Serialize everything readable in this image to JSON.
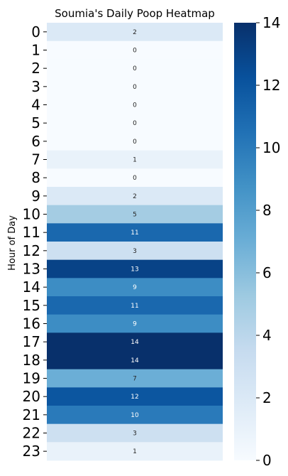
{
  "chart_data": {
    "type": "heatmap",
    "title": "Soumia's Daily Poop Heatmap",
    "ylabel": "Hour of Day",
    "xlabel": "",
    "categories": [
      "0",
      "1",
      "2",
      "3",
      "4",
      "5",
      "6",
      "7",
      "8",
      "9",
      "10",
      "11",
      "12",
      "13",
      "14",
      "15",
      "16",
      "17",
      "18",
      "19",
      "20",
      "21",
      "22",
      "23"
    ],
    "values": [
      2,
      0,
      0,
      0,
      0,
      0,
      0,
      1,
      0,
      2,
      5,
      11,
      3,
      13,
      9,
      11,
      9,
      14,
      14,
      7,
      12,
      10,
      3,
      1
    ],
    "colormap": "Blues",
    "vmin": 0,
    "vmax": 14,
    "colorbar_ticks": [
      "0",
      "2",
      "4",
      "6",
      "8",
      "10",
      "12",
      "14"
    ]
  }
}
